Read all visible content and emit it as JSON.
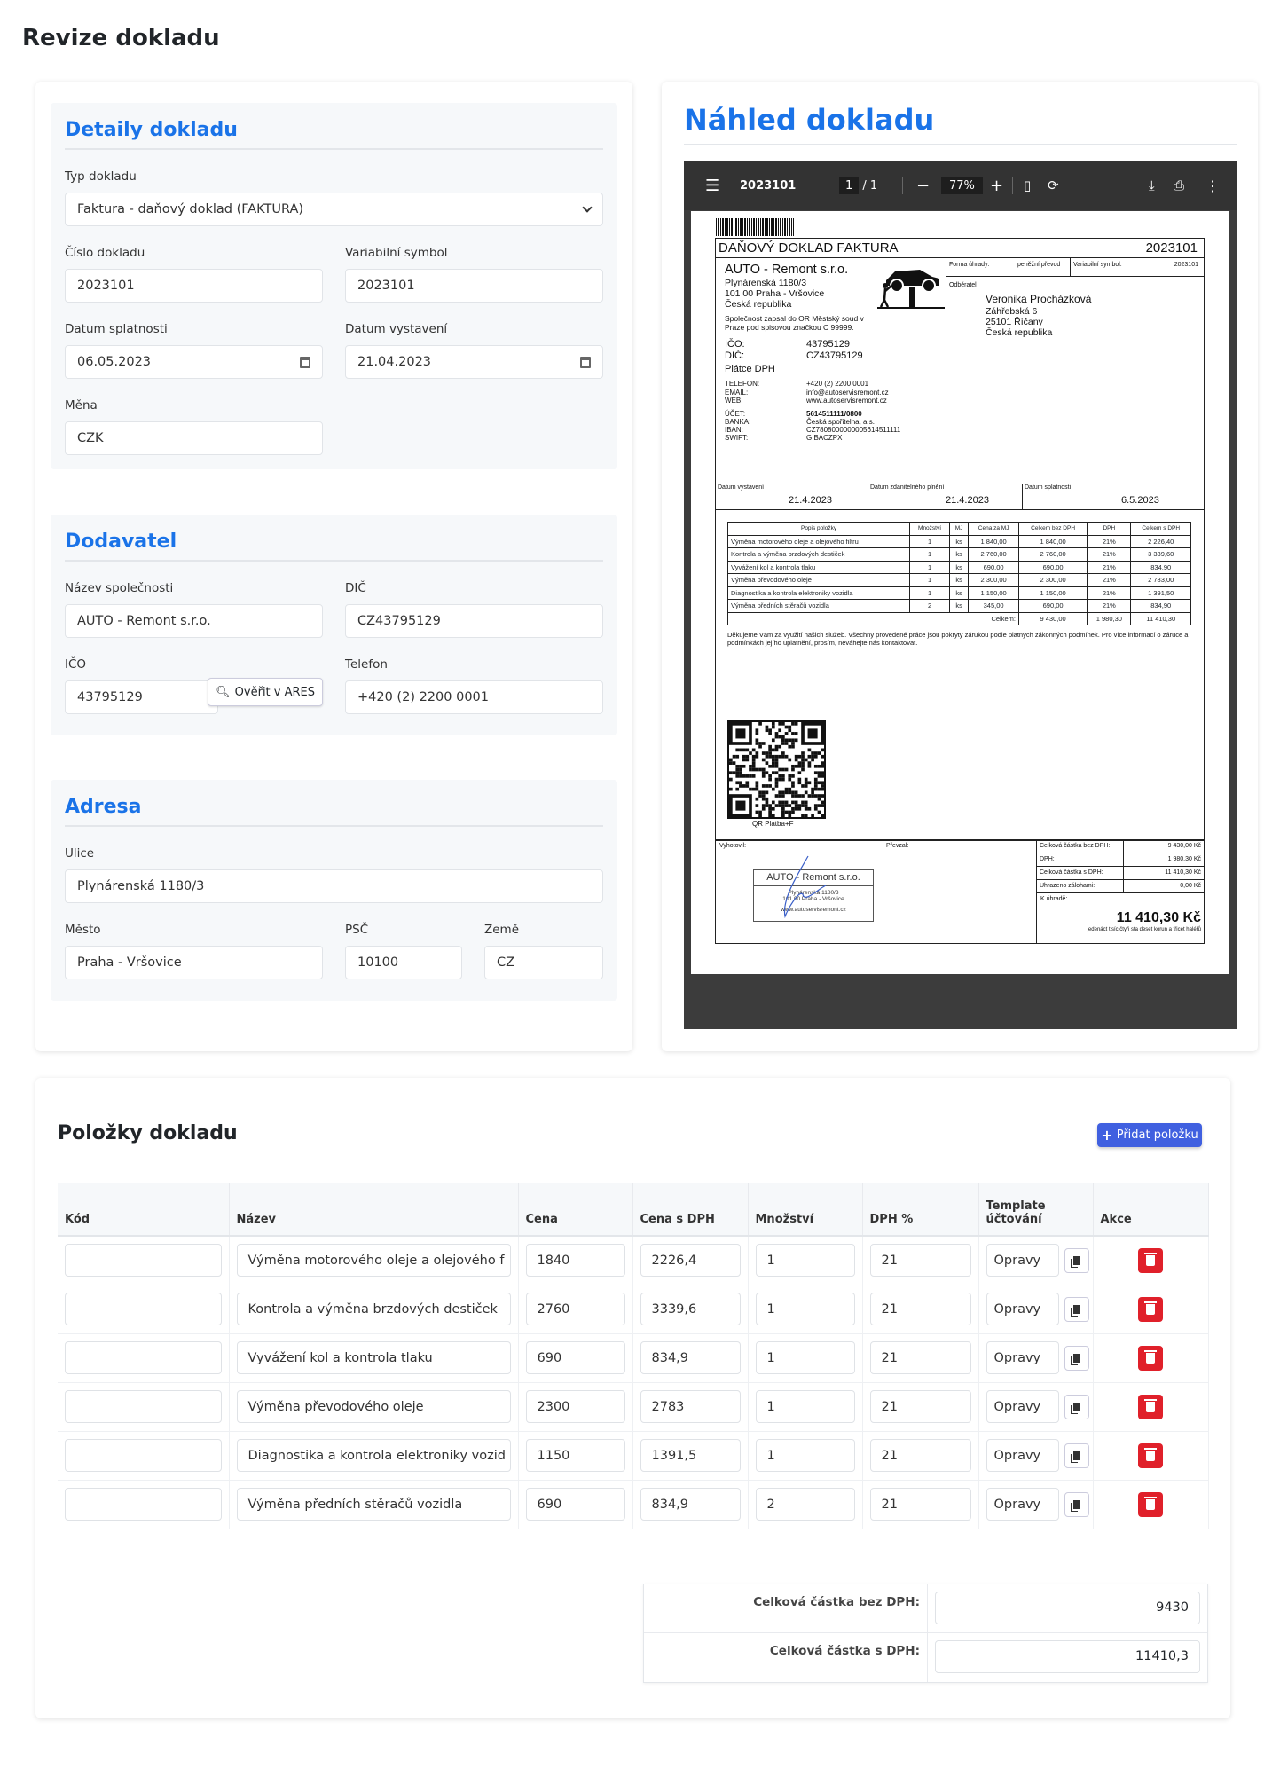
{
  "page_title": "Revize dokladu",
  "details": {
    "heading": "Detaily dokladu",
    "typ_label": "Typ dokladu",
    "typ_value": "Faktura - daňový doklad (FAKTURA)",
    "cislo_label": "Číslo dokladu",
    "cislo_value": "2023101",
    "vs_label": "Variabilní symbol",
    "vs_value": "2023101",
    "splatnost_label": "Datum splatnosti",
    "splatnost_value": "06.05.2023",
    "vystaveni_label": "Datum vystavení",
    "vystaveni_value": "21.04.2023",
    "mena_label": "Měna",
    "mena_value": "CZK"
  },
  "supplier": {
    "heading": "Dodavatel",
    "name_label": "Název společnosti",
    "name_value": "AUTO - Remont s.r.o.",
    "dic_label": "DIČ",
    "dic_value": "CZ43795129",
    "ico_label": "IČO",
    "ico_value": "43795129",
    "ares_button": "Ověřit v ARES",
    "phone_label": "Telefon",
    "phone_value": "+420 (2) 2200 0001"
  },
  "address": {
    "heading": "Adresa",
    "street_label": "Ulice",
    "street_value": "Plynárenská 1180/3",
    "city_label": "Město",
    "city_value": "Praha - Vršovice",
    "zip_label": "PSČ",
    "zip_value": "10100",
    "country_label": "Země",
    "country_value": "CZ"
  },
  "preview": {
    "heading": "Náhled dokladu",
    "toolbar": {
      "filename": "2023101",
      "page": "1",
      "pages": "/ 1",
      "zoom": "77%"
    },
    "invoice": {
      "title": "DAŇOVÝ DOKLAD FAKTURA",
      "number": "2023101",
      "supplier_name": "AUTO - Remont s.r.o.",
      "supplier_lines": [
        "Plynárenská 1180/3",
        "101 00 Praha - Vršovice",
        "Česká republika"
      ],
      "registry": "Společnost zapsal do OR Městský soud v Praze pod spisovou značkou C 99999.",
      "ico_label": "IČO:",
      "ico": "43795129",
      "dic_label": "DIČ:",
      "dic": "CZ43795129",
      "vat_payer": "Plátce DPH",
      "tel_label": "TELEFON:",
      "tel": "+420 (2) 2200 0001",
      "email_label": "EMAIL:",
      "email": "info@autoservisremont.cz",
      "web_label": "WEB:",
      "web": "www.autoservisremont.cz",
      "account_label": "ÚČET:",
      "account": "5614511111/0800",
      "bank_label": "BANKA:",
      "bank": "Česká spořitelna, a.s.",
      "iban_label": "IBAN:",
      "iban": "CZ7808000000005614511111",
      "swift_label": "SWIFT:",
      "swift": "GIBACZPX",
      "payment_label": "Forma úhrady:",
      "payment": "peněžní převod",
      "vs_label": "Variabilní symbol:",
      "vs": "2023101",
      "customer_label": "Odběratel",
      "customer_lines": [
        "Veronika Procházková",
        "Záhřebská 6",
        "25101 Říčany",
        "Česká republika"
      ],
      "date_issue_label": "Datum vystavení",
      "date_issue": "21.4.2023",
      "date_tax_label": "Datum zdanitelného plnění",
      "date_tax": "21.4.2023",
      "date_due_label": "Datum splatnosti",
      "date_due": "6.5.2023",
      "table_headers": [
        "Popis položky",
        "Množství",
        "MJ",
        "Cena za MJ",
        "Celkem bez DPH",
        "DPH",
        "Celkem s DPH"
      ],
      "table_rows": [
        [
          "Výměna motorového oleje a olejového filtru",
          "1",
          "ks",
          "1 840,00",
          "1 840,00",
          "21%",
          "2 226,40"
        ],
        [
          "Kontrola a výměna brzdových destiček",
          "1",
          "ks",
          "2 760,00",
          "2 760,00",
          "21%",
          "3 339,60"
        ],
        [
          "Vyvážení kol a kontrola tlaku",
          "1",
          "ks",
          "690,00",
          "690,00",
          "21%",
          "834,90"
        ],
        [
          "Výměna převodového oleje",
          "1",
          "ks",
          "2 300,00",
          "2 300,00",
          "21%",
          "2 783,00"
        ],
        [
          "Diagnostika a kontrola elektroniky vozidla",
          "1",
          "ks",
          "1 150,00",
          "1 150,00",
          "21%",
          "1 391,50"
        ],
        [
          "Výměna předních stěračů vozidla",
          "2",
          "ks",
          "345,00",
          "690,00",
          "21%",
          "834,90"
        ]
      ],
      "table_total_label": "Celkem:",
      "table_totals": [
        "9 430,00",
        "1 980,30",
        "11 410,30"
      ],
      "note": "Děkujeme Vám za využití našich služeb. Všechny provedené práce jsou pokryty zárukou podle platných zákonných podmínek. Pro více informací o záruce a podmínkách jejího uplatnění, prosím, neváhejte nás kontaktovat.",
      "qr_label": "QR Platba+F",
      "issued_by_label": "Vyhotovil:",
      "received_by_label": "Převzal:",
      "stamp_name": "AUTO - Remont s.r.o.",
      "stamp_lines": [
        "Plynárenská 1180/3",
        "101 00 Praha - Vršovice",
        "www.autoservisremont.cz"
      ],
      "sum_rows": [
        [
          "Celková částka bez DPH:",
          "9 430,00 Kč"
        ],
        [
          "DPH:",
          "1 980,30 Kč"
        ],
        [
          "Celková částka s DPH:",
          "11 410,30 Kč"
        ],
        [
          "Uhrazeno zálohami:",
          "0,00 Kč"
        ]
      ],
      "due_label": "K úhradě:",
      "due_amount": "11 410,30 Kč",
      "due_words": "jedenáct tisíc čtyři sta deset korun a  třicet haléřů"
    }
  },
  "items": {
    "heading": "Položky dokladu",
    "add_button": "Přidat položku",
    "columns": [
      "Kód",
      "Název",
      "Cena",
      "Cena s DPH",
      "Množství",
      "DPH %",
      "Template účtování",
      "Akce"
    ],
    "rows": [
      {
        "code": "",
        "name": "Výměna motorového oleje a olejového f",
        "price": "1840",
        "price_vat": "2226,4",
        "qty": "1",
        "vat": "21",
        "template": "Opravy"
      },
      {
        "code": "",
        "name": "Kontrola a výměna brzdových destiček",
        "price": "2760",
        "price_vat": "3339,6",
        "qty": "1",
        "vat": "21",
        "template": "Opravy"
      },
      {
        "code": "",
        "name": "Vyvážení kol a kontrola tlaku",
        "price": "690",
        "price_vat": "834,9",
        "qty": "1",
        "vat": "21",
        "template": "Opravy"
      },
      {
        "code": "",
        "name": "Výměna převodového oleje",
        "price": "2300",
        "price_vat": "2783",
        "qty": "1",
        "vat": "21",
        "template": "Opravy"
      },
      {
        "code": "",
        "name": "Diagnostika a kontrola elektroniky vozid",
        "price": "1150",
        "price_vat": "1391,5",
        "qty": "1",
        "vat": "21",
        "template": "Opravy"
      },
      {
        "code": "",
        "name": "Výměna předních stěračů vozidla",
        "price": "690",
        "price_vat": "834,9",
        "qty": "2",
        "vat": "21",
        "template": "Opravy"
      }
    ],
    "total_without_vat_label": "Celková částka bez DPH:",
    "total_without_vat": "9430",
    "total_with_vat_label": "Celková částka s DPH:",
    "total_with_vat": "11410,3"
  },
  "colors": {
    "accent": "#1a73e8",
    "add_button": "#4060e0",
    "delete": "#e0202a",
    "pdf_toolbar": "#333333"
  }
}
